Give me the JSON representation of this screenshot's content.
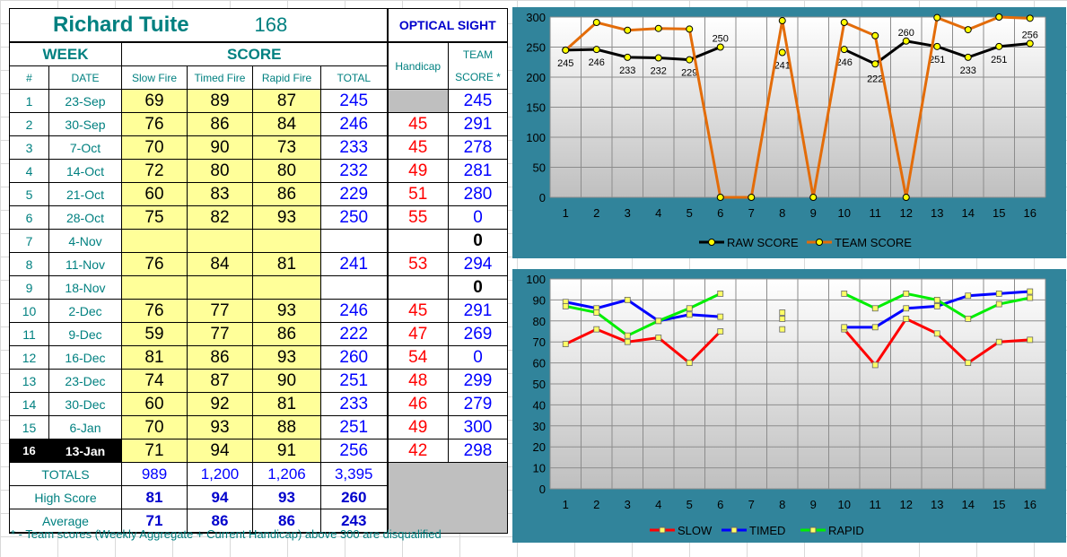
{
  "header": {
    "name": "Richard Tuite",
    "total": "168",
    "sight": "OPTICAL SIGHT",
    "week_label": "WEEK",
    "score_label": "SCORE",
    "handicap_label": "Handicap",
    "team_label": "TEAM",
    "team_score_label": "SCORE *",
    "cols": {
      "num": "#",
      "date": "DATE",
      "slow": "Slow Fire",
      "timed": "Timed Fire",
      "rapid": "Rapid Fire",
      "total": "TOTAL"
    }
  },
  "rows": [
    {
      "num": "1",
      "date": "23-Sep",
      "slow": "69",
      "timed": "89",
      "rapid": "87",
      "total": "245",
      "handicap": "",
      "team": "245"
    },
    {
      "num": "2",
      "date": "30-Sep",
      "slow": "76",
      "timed": "86",
      "rapid": "84",
      "total": "246",
      "handicap": "45",
      "team": "291"
    },
    {
      "num": "3",
      "date": "7-Oct",
      "slow": "70",
      "timed": "90",
      "rapid": "73",
      "total": "233",
      "handicap": "45",
      "team": "278"
    },
    {
      "num": "4",
      "date": "14-Oct",
      "slow": "72",
      "timed": "80",
      "rapid": "80",
      "total": "232",
      "handicap": "49",
      "team": "281"
    },
    {
      "num": "5",
      "date": "21-Oct",
      "slow": "60",
      "timed": "83",
      "rapid": "86",
      "total": "229",
      "handicap": "51",
      "team": "280"
    },
    {
      "num": "6",
      "date": "28-Oct",
      "slow": "75",
      "timed": "82",
      "rapid": "93",
      "total": "250",
      "handicap": "55",
      "team": "0"
    },
    {
      "num": "7",
      "date": "4-Nov",
      "slow": "",
      "timed": "",
      "rapid": "",
      "total": "",
      "handicap": "",
      "team": "0"
    },
    {
      "num": "8",
      "date": "11-Nov",
      "slow": "76",
      "timed": "84",
      "rapid": "81",
      "total": "241",
      "handicap": "53",
      "team": "294"
    },
    {
      "num": "9",
      "date": "18-Nov",
      "slow": "",
      "timed": "",
      "rapid": "",
      "total": "",
      "handicap": "",
      "team": "0"
    },
    {
      "num": "10",
      "date": "2-Dec",
      "slow": "76",
      "timed": "77",
      "rapid": "93",
      "total": "246",
      "handicap": "45",
      "team": "291"
    },
    {
      "num": "11",
      "date": "9-Dec",
      "slow": "59",
      "timed": "77",
      "rapid": "86",
      "total": "222",
      "handicap": "47",
      "team": "269"
    },
    {
      "num": "12",
      "date": "16-Dec",
      "slow": "81",
      "timed": "86",
      "rapid": "93",
      "total": "260",
      "handicap": "54",
      "team": "0"
    },
    {
      "num": "13",
      "date": "23-Dec",
      "slow": "74",
      "timed": "87",
      "rapid": "90",
      "total": "251",
      "handicap": "48",
      "team": "299"
    },
    {
      "num": "14",
      "date": "30-Dec",
      "slow": "60",
      "timed": "92",
      "rapid": "81",
      "total": "233",
      "handicap": "46",
      "team": "279"
    },
    {
      "num": "15",
      "date": "6-Jan",
      "slow": "70",
      "timed": "93",
      "rapid": "88",
      "total": "251",
      "handicap": "49",
      "team": "300"
    },
    {
      "num": "16",
      "date": "13-Jan",
      "slow": "71",
      "timed": "94",
      "rapid": "91",
      "total": "256",
      "handicap": "42",
      "team": "298"
    }
  ],
  "totals": {
    "label": "TOTALS",
    "slow": "989",
    "timed": "1,200",
    "rapid": "1,206",
    "total": "3,395"
  },
  "high": {
    "label": "High Score",
    "slow": "81",
    "timed": "94",
    "rapid": "93",
    "total": "260"
  },
  "average": {
    "label": "Average",
    "slow": "71",
    "timed": "86",
    "rapid": "86",
    "total": "243"
  },
  "footnote": "* - Team scores (Weekly Aggregate + Current Handicap) above 300 are disqualified",
  "chart_data": [
    {
      "type": "line",
      "x": [
        1,
        2,
        3,
        4,
        5,
        6,
        7,
        8,
        9,
        10,
        11,
        12,
        13,
        14,
        15,
        16
      ],
      "ylim": [
        0,
        300
      ],
      "yticks": [
        0,
        50,
        100,
        150,
        200,
        250,
        300
      ],
      "grid": true,
      "legend": "bottom",
      "series": [
        {
          "name": "RAW SCORE",
          "color": "#000000",
          "values": [
            245,
            246,
            233,
            232,
            229,
            250,
            null,
            241,
            null,
            246,
            222,
            260,
            251,
            233,
            251,
            256
          ],
          "labels": [
            "245",
            "246",
            "233",
            "232",
            "229",
            "250",
            "",
            "241",
            "",
            "246",
            "222",
            "260",
            "251",
            "233",
            "251",
            "256"
          ]
        },
        {
          "name": "TEAM SCORE",
          "color": "#e36c09",
          "values": [
            245,
            291,
            278,
            281,
            280,
            0,
            0,
            294,
            0,
            291,
            269,
            0,
            299,
            279,
            300,
            298
          ]
        }
      ]
    },
    {
      "type": "line",
      "x": [
        1,
        2,
        3,
        4,
        5,
        6,
        7,
        8,
        9,
        10,
        11,
        12,
        13,
        14,
        15,
        16
      ],
      "ylim": [
        0,
        100
      ],
      "yticks": [
        0,
        10,
        20,
        30,
        40,
        50,
        60,
        70,
        80,
        90,
        100
      ],
      "grid": true,
      "legend": "bottom",
      "series": [
        {
          "name": "SLOW",
          "color": "#ff0000",
          "values": [
            69,
            76,
            70,
            72,
            60,
            75,
            null,
            76,
            null,
            76,
            59,
            81,
            74,
            60,
            70,
            71
          ]
        },
        {
          "name": "TIMED",
          "color": "#0000ff",
          "values": [
            89,
            86,
            90,
            80,
            83,
            82,
            null,
            84,
            null,
            77,
            77,
            86,
            87,
            92,
            93,
            94
          ]
        },
        {
          "name": "RAPID",
          "color": "#00ee00",
          "values": [
            87,
            84,
            73,
            80,
            86,
            93,
            null,
            81,
            null,
            93,
            86,
            93,
            90,
            81,
            88,
            91
          ]
        }
      ]
    }
  ]
}
